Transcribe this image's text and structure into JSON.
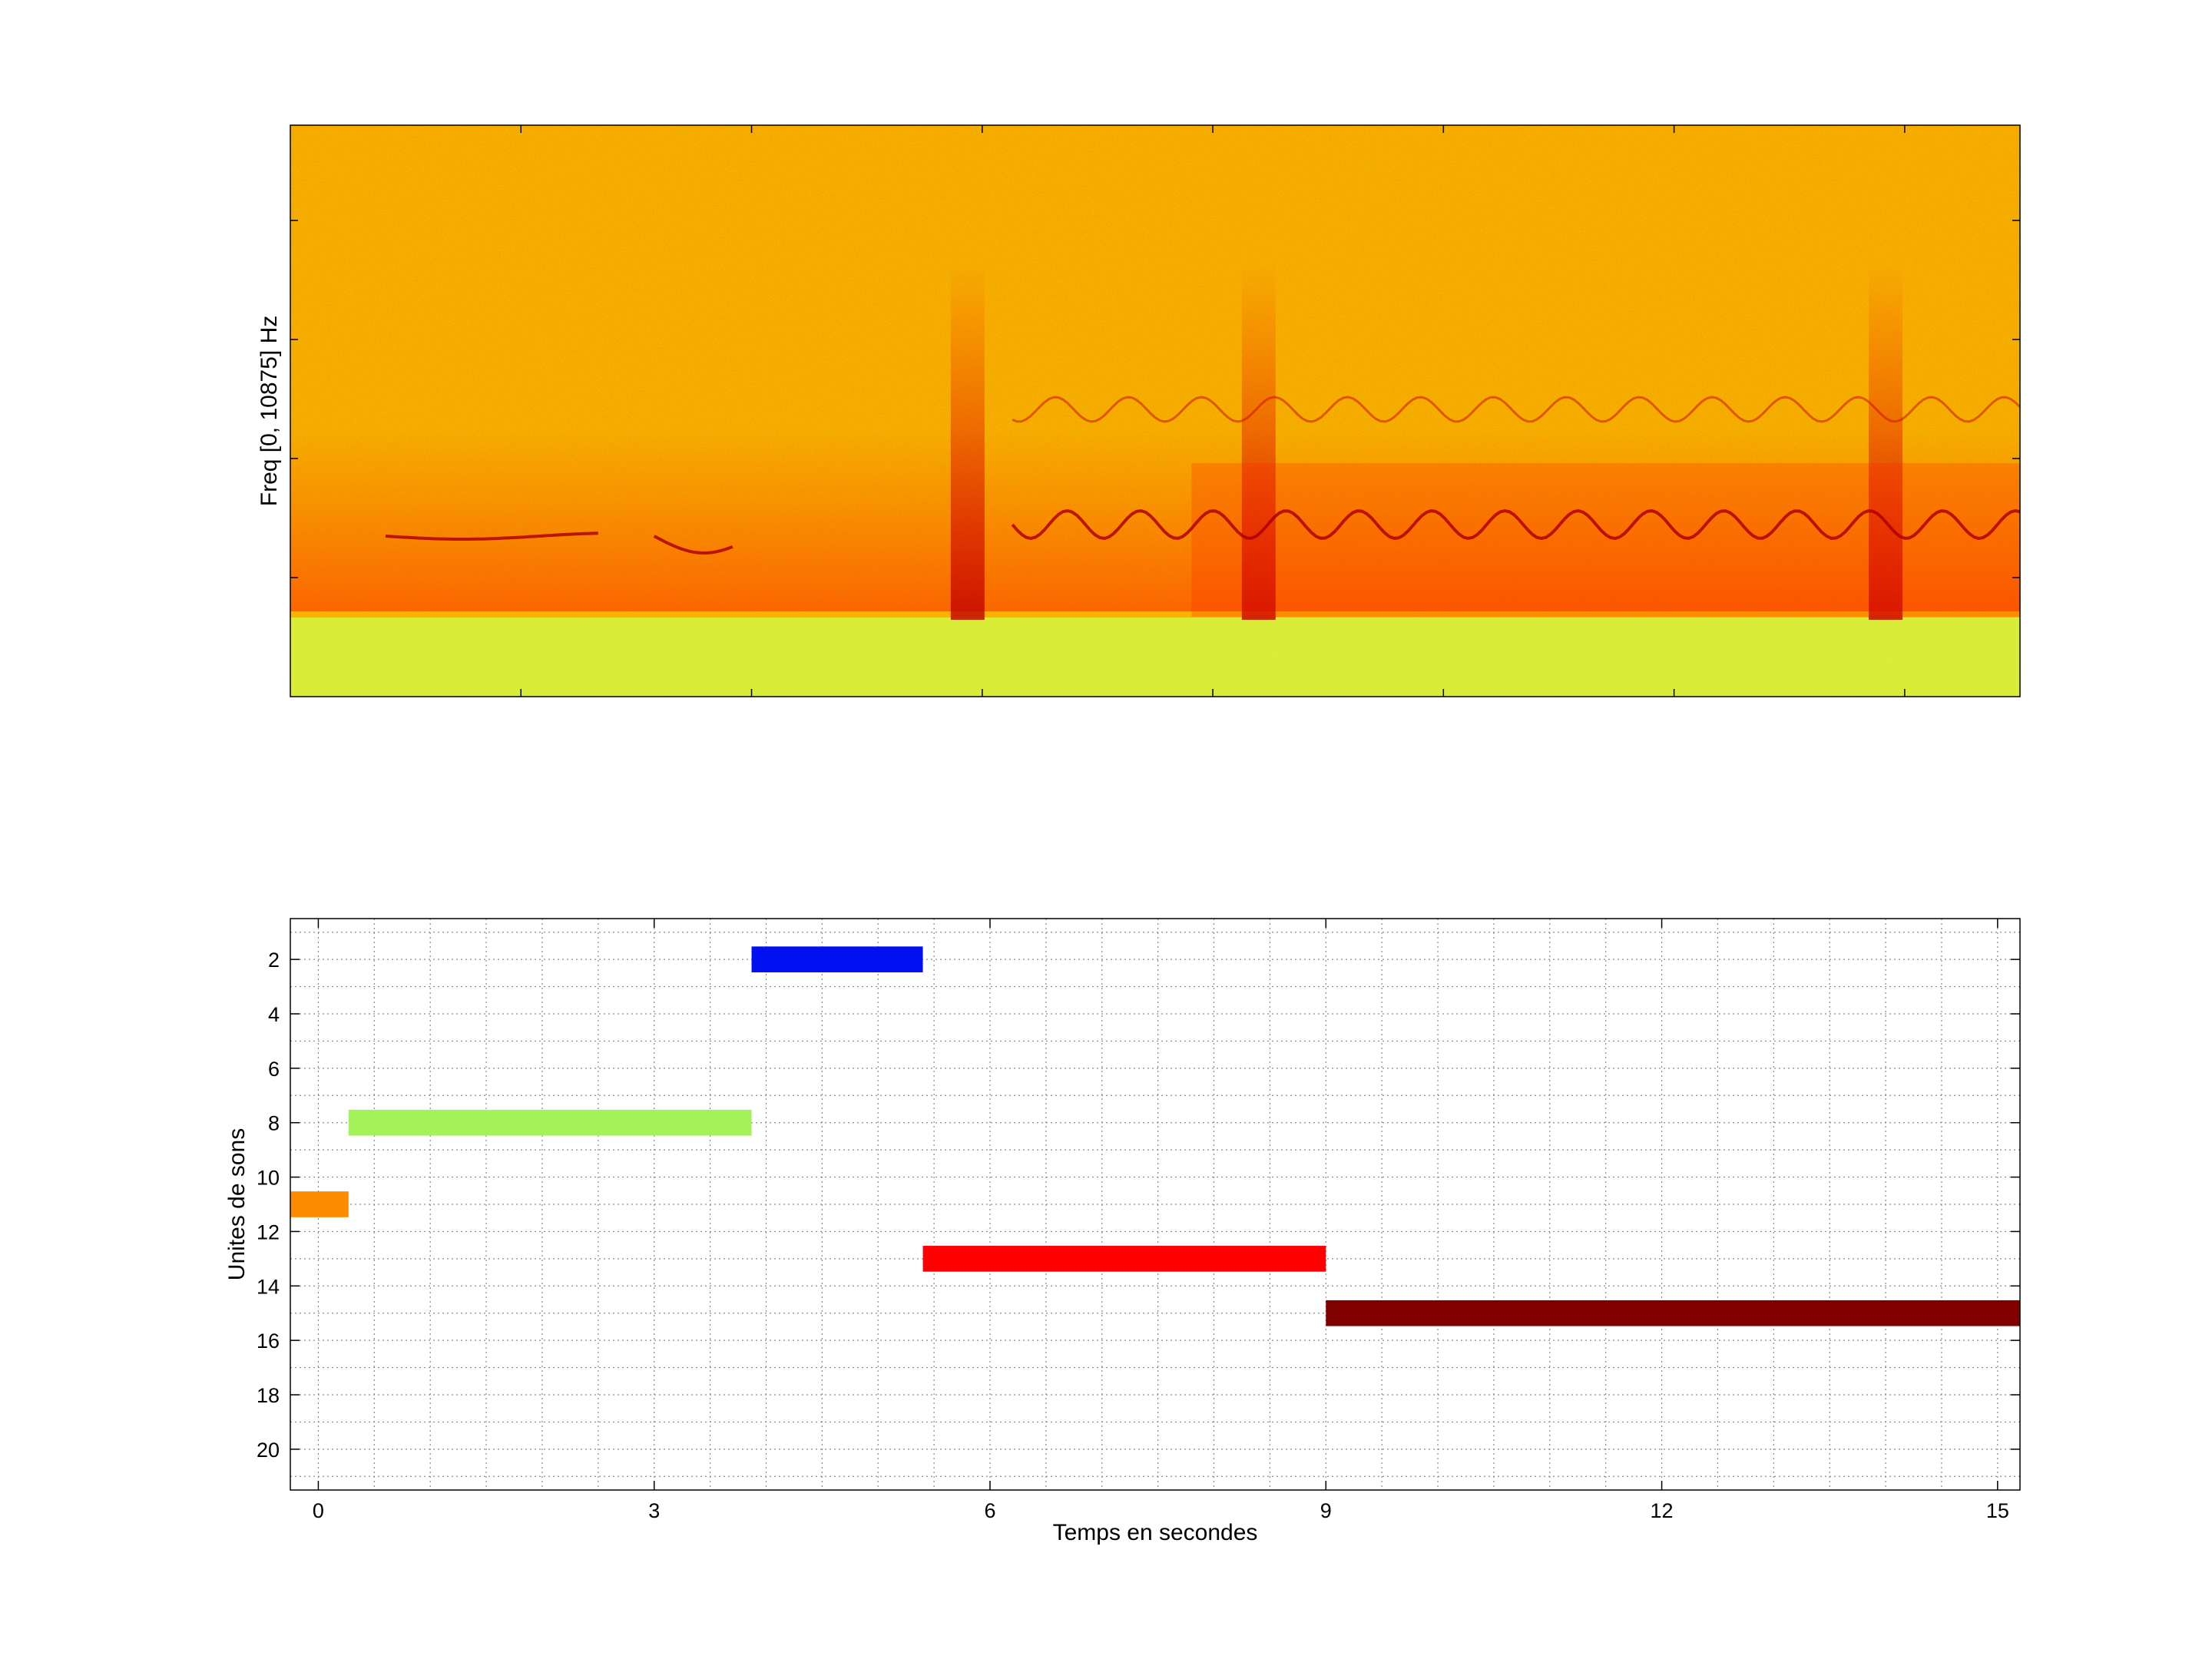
{
  "chart_data": [
    {
      "type": "heatmap",
      "ylabel": "Freq [0, 10875] Hz",
      "xlabel": "",
      "yticks_labeled": false,
      "xticks_labeled": false,
      "xlim": [
        -0.25,
        15.2
      ],
      "ylim": [
        0,
        10875
      ],
      "noise_floor_band_fraction": 0.15,
      "colormap": [
        "#ff0000",
        "#ff6a00",
        "#ffa000",
        "#ffd000",
        "#e4ff30",
        "#9effa0",
        "#60e0e0"
      ],
      "tonal_traces_seconds": [
        [
          0.6,
          2.5
        ],
        [
          3.0,
          3.7
        ],
        [
          6.2,
          15.2
        ]
      ],
      "broadband_bursts_seconds": [
        5.8,
        8.4,
        14.0
      ]
    },
    {
      "type": "bar",
      "orientation": "horizontal",
      "xlabel": "Temps en secondes",
      "ylabel": "Unites de sons",
      "xlim": [
        -0.25,
        15.2
      ],
      "ylim": [
        21.5,
        0.5
      ],
      "y_direction": "reverse",
      "xticks": [
        0,
        3,
        6,
        9,
        12,
        15
      ],
      "yticks": [
        2,
        4,
        6,
        8,
        10,
        12,
        14,
        16,
        18,
        20
      ],
      "grid": true,
      "bars": [
        {
          "start": 3.87,
          "end": 5.4,
          "y": 2,
          "color": "#0010f0"
        },
        {
          "start": 0.27,
          "end": 3.87,
          "y": 8,
          "color": "#a4f25a"
        },
        {
          "start": -0.25,
          "end": 0.27,
          "y": 11,
          "color": "#ff8c00"
        },
        {
          "start": 5.4,
          "end": 9.0,
          "y": 13,
          "color": "#ff0000"
        },
        {
          "start": 9.0,
          "end": 15.2,
          "y": 15,
          "color": "#800000"
        }
      ]
    }
  ]
}
